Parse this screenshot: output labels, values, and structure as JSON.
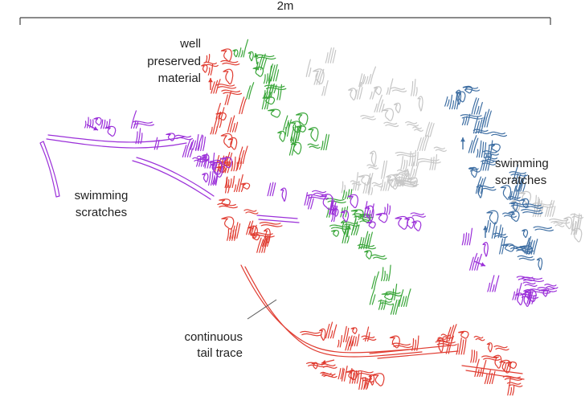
{
  "scale_bar": {
    "label": "2m"
  },
  "labels": [
    {
      "lines": [
        "well",
        "preserved",
        "material"
      ]
    },
    {
      "lines": [
        "swimming",
        "scratches"
      ]
    },
    {
      "lines": [
        "swimming",
        "scratches"
      ]
    },
    {
      "lines": [
        "continuous",
        "tail trace"
      ]
    }
  ]
}
